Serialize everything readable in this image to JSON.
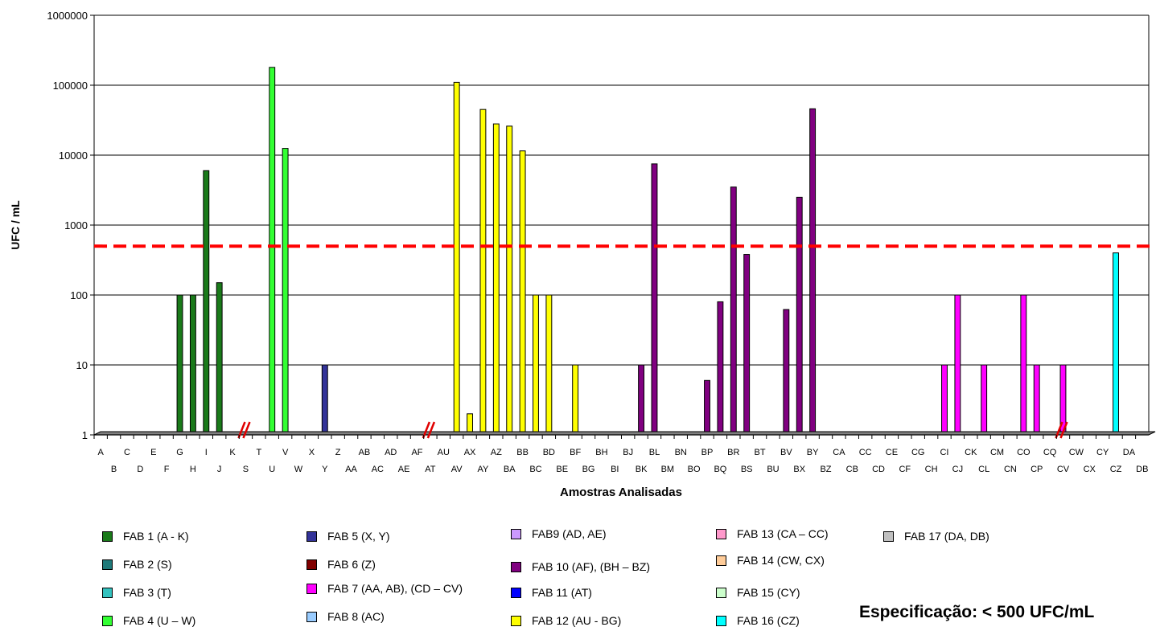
{
  "chart_data": {
    "type": "bar",
    "scale": "log",
    "ylabel": "UFC / mL",
    "xlabel": "Amostras Analisadas",
    "yticks": [
      "1",
      "10",
      "100",
      "1000",
      "10000",
      "100000",
      "1000000"
    ],
    "ylim": [
      1,
      1000000
    ],
    "grid": "horizontal",
    "legend_position": "bottom",
    "categories": [
      "A",
      "B",
      "C",
      "D",
      "E",
      "F",
      "G",
      "H",
      "I",
      "J",
      "K",
      "S",
      "T",
      "U",
      "V",
      "W",
      "X",
      "Y",
      "Z",
      "AA",
      "AB",
      "AC",
      "AD",
      "AE",
      "AF",
      "AT",
      "AU",
      "AV",
      "AX",
      "AY",
      "AZ",
      "BA",
      "BB",
      "BC",
      "BD",
      "BE",
      "BF",
      "BG",
      "BH",
      "BI",
      "BJ",
      "BK",
      "BL",
      "BM",
      "BN",
      "BO",
      "BP",
      "BQ",
      "BR",
      "BS",
      "BT",
      "BU",
      "BV",
      "BX",
      "BY",
      "BZ",
      "CA",
      "CB",
      "CC",
      "CD",
      "CE",
      "CF",
      "CG",
      "CH",
      "CI",
      "CJ",
      "CK",
      "CL",
      "CM",
      "CN",
      "CO",
      "CP",
      "CQ",
      "CV",
      "CW",
      "CX",
      "CY",
      "CZ",
      "DA",
      "DB"
    ],
    "values": [
      1,
      1,
      1,
      1,
      1,
      1,
      100,
      100,
      6000,
      150,
      1,
      1,
      1,
      180000,
      12500,
      1,
      1,
      10,
      1,
      1,
      1,
      1,
      1,
      1,
      1,
      1,
      1,
      110000,
      2,
      45000,
      28000,
      26000,
      11500,
      100,
      100,
      1,
      10,
      1,
      1,
      1,
      1,
      10,
      7500,
      1,
      1,
      1,
      6,
      80,
      3500,
      380,
      1,
      1,
      62,
      2500,
      46000,
      1,
      1,
      1,
      1,
      1,
      1,
      1,
      1,
      1,
      10,
      100,
      1,
      10,
      1,
      1,
      100,
      10,
      1,
      10,
      1,
      1,
      1,
      400,
      1,
      1
    ],
    "bar_colors": [
      "#1a7a1a",
      "#1a7a1a",
      "#1a7a1a",
      "#1a7a1a",
      "#1a7a1a",
      "#1a7a1a",
      "#1a7a1a",
      "#1a7a1a",
      "#1a7a1a",
      "#1a7a1a",
      "#1a7a1a",
      "#1f7a7a",
      "#33c2bf",
      "#33ff33",
      "#33ff33",
      "#33ff33",
      "#333399",
      "#333399",
      "#800000",
      "#ff00ff",
      "#ff00ff",
      "#99ccff",
      "#cc99ff",
      "#cc99ff",
      "#800080",
      "#0000ff",
      "#ffff00",
      "#ffff00",
      "#ffff00",
      "#ffff00",
      "#ffff00",
      "#ffff00",
      "#ffff00",
      "#ffff00",
      "#ffff00",
      "#ffff00",
      "#ffff00",
      "#ffff00",
      "#800080",
      "#800080",
      "#800080",
      "#800080",
      "#800080",
      "#800080",
      "#800080",
      "#800080",
      "#800080",
      "#800080",
      "#800080",
      "#800080",
      "#800080",
      "#800080",
      "#800080",
      "#800080",
      "#800080",
      "#800080",
      "#ff99cc",
      "#ff99cc",
      "#ff99cc",
      "#ff00ff",
      "#ff00ff",
      "#ff00ff",
      "#ff00ff",
      "#ff00ff",
      "#ff00ff",
      "#ff00ff",
      "#ff00ff",
      "#ff00ff",
      "#ff00ff",
      "#ff00ff",
      "#ff00ff",
      "#ff00ff",
      "#ff00ff",
      "#ff00ff",
      "#ffcc99",
      "#ffcc99",
      "#ccffcc",
      "#00ffff",
      "#c0c0c0",
      "#c0c0c0"
    ],
    "axis_breaks_after": [
      "K",
      "AF",
      "CQ"
    ],
    "reference_line": {
      "value": 500,
      "color": "#ff0000",
      "style": "dashed"
    },
    "legend": [
      {
        "label": "FAB 1 (A - K)",
        "color": "#1a7a1a"
      },
      {
        "label": "FAB 2 (S)",
        "color": "#1f7a7a"
      },
      {
        "label": "FAB 3 (T)",
        "color": "#33c2bf"
      },
      {
        "label": "FAB 4 (U – W)",
        "color": "#33ff33"
      },
      {
        "label": "FAB 5 (X, Y)",
        "color": "#333399"
      },
      {
        "label": "FAB 6 (Z)",
        "color": "#800000"
      },
      {
        "label": "FAB 7 (AA, AB), (CD – CV)",
        "color": "#ff00ff"
      },
      {
        "label": "FAB 8 (AC)",
        "color": "#99ccff"
      },
      {
        "label": "FAB9 (AD, AE)",
        "color": "#cc99ff"
      },
      {
        "label": "FAB 10 (AF), (BH – BZ)",
        "color": "#800080"
      },
      {
        "label": "FAB 11 (AT)",
        "color": "#0000ff"
      },
      {
        "label": "FAB 12 (AU - BG)",
        "color": "#ffff00"
      },
      {
        "label": "FAB 13 (CA – CC)",
        "color": "#ff99cc"
      },
      {
        "label": "FAB 14 (CW, CX)",
        "color": "#ffcc99"
      },
      {
        "label": "FAB 15 (CY)",
        "color": "#ccffcc"
      },
      {
        "label": "FAB 16 (CZ)",
        "color": "#00ffff"
      },
      {
        "label": "FAB 17 (DA, DB)",
        "color": "#c0c0c0"
      }
    ]
  },
  "specification": "Especificação: < 500 UFC/mL"
}
